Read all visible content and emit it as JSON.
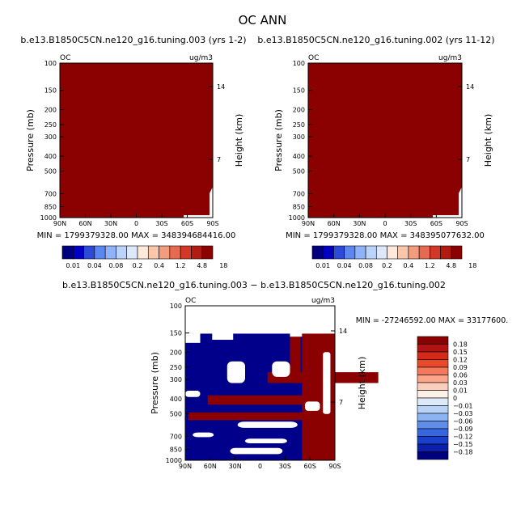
{
  "title": "OC ANN",
  "colors": {
    "field": "#8B0000",
    "white": "#ffffff",
    "navy": "#00008B"
  },
  "chart_data": [
    {
      "type": "heatmap",
      "title": "b.e13.B1850C5CN.ne120_g16.tuning.003 (yrs 1-2)",
      "field_label": "OC",
      "units": "ug/m3",
      "ylabel": "Pressure (mb)",
      "ylabel_right": "Height (km)",
      "x_ticks": [
        "90N",
        "60N",
        "30N",
        "0",
        "30S",
        "60S",
        "90S"
      ],
      "y_ticks": [
        "100",
        "150",
        "200",
        "250",
        "300",
        "400",
        "500",
        "700",
        "850",
        "1000"
      ],
      "y_right_ticks": [
        "14",
        "7"
      ],
      "ylim": [
        1000,
        100
      ],
      "stats": "MIN = 1799379328.00   MAX = 348394684416.00",
      "colorbar": [
        "0.01",
        "0.04",
        "0.08",
        "0.2",
        "0.4",
        "1.2",
        "4.8",
        "18"
      ]
    },
    {
      "type": "heatmap",
      "title": "b.e13.B1850C5CN.ne120_g16.tuning.002 (yrs 11-12)",
      "field_label": "OC",
      "units": "ug/m3",
      "ylabel": "Pressure (mb)",
      "ylabel_right": "Height (km)",
      "x_ticks": [
        "90N",
        "60N",
        "30N",
        "0",
        "30S",
        "60S",
        "90S"
      ],
      "y_ticks": [
        "100",
        "150",
        "200",
        "250",
        "300",
        "400",
        "500",
        "700",
        "850",
        "1000"
      ],
      "y_right_ticks": [
        "14",
        "7"
      ],
      "ylim": [
        1000,
        100
      ],
      "stats": "MIN = 1799379328.00   MAX = 348395077632.00",
      "colorbar": [
        "0.01",
        "0.04",
        "0.08",
        "0.2",
        "0.4",
        "1.2",
        "4.8",
        "18"
      ]
    },
    {
      "type": "heatmap",
      "title": "b.e13.B1850C5CN.ne120_g16.tuning.003 − b.e13.B1850C5CN.ne120_g16.tuning.002",
      "field_label": "OC",
      "units": "ug/m3",
      "ylabel": "Pressure (mb)",
      "ylabel_right": "Height (km)",
      "x_ticks": [
        "90N",
        "60N",
        "30N",
        "0",
        "30S",
        "60S",
        "90S"
      ],
      "y_ticks": [
        "100",
        "150",
        "200",
        "250",
        "300",
        "400",
        "500",
        "700",
        "850",
        "1000"
      ],
      "y_right_ticks": [
        "14",
        "7"
      ],
      "ylim": [
        1000,
        100
      ],
      "stats": "MIN = -27246592.00   MAX = 33177600.",
      "colorbar": [
        "0.18",
        "0.15",
        "0.12",
        "0.09",
        "0.06",
        "0.03",
        "0.01",
        "0",
        "−0.01",
        "−0.03",
        "−0.06",
        "−0.09",
        "−0.12",
        "−0.15",
        "−0.18"
      ]
    }
  ]
}
